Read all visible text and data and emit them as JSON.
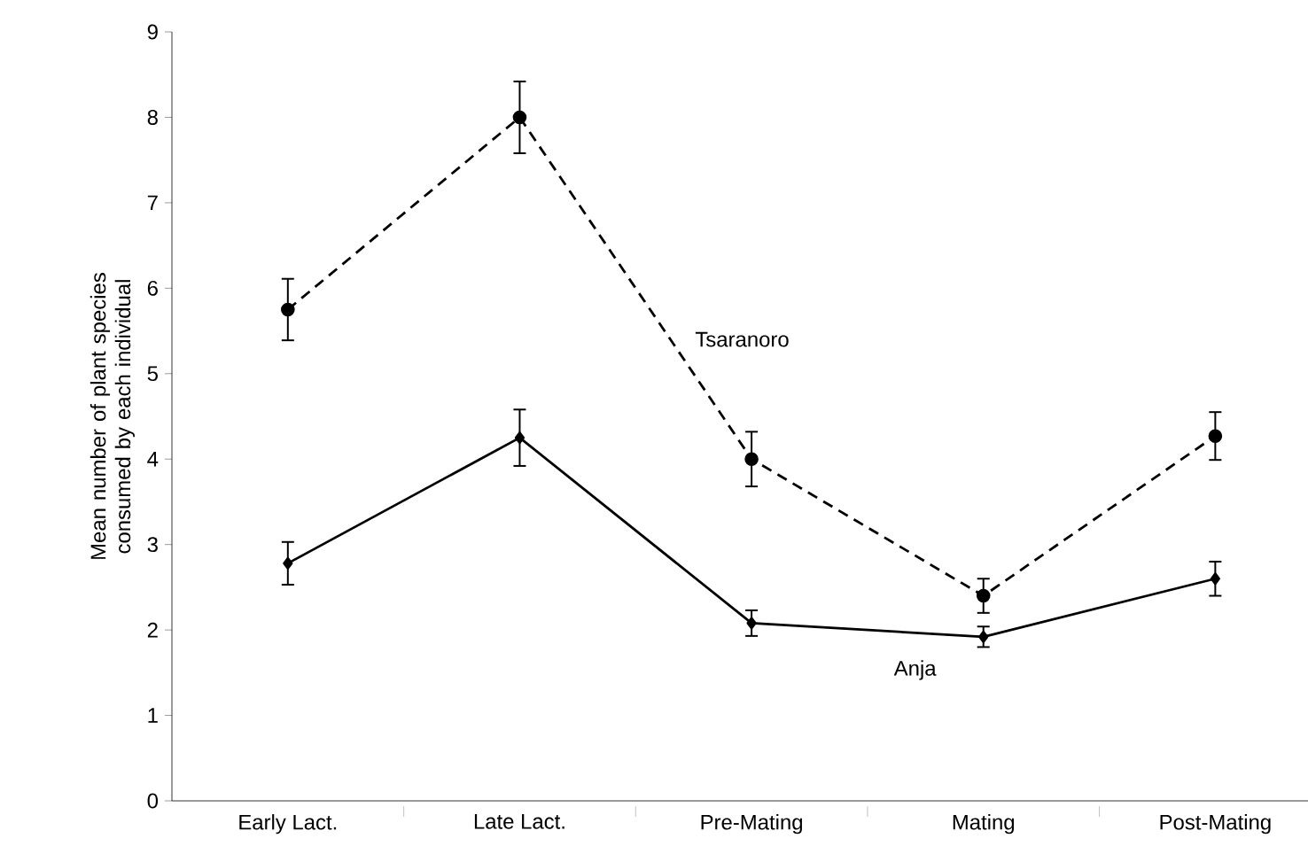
{
  "chart_data": {
    "type": "line",
    "ylabel": "Mean number of plant species consumed by each individual",
    "categories": [
      "Early Lact.",
      "Late Lact.",
      "Pre-Mating",
      "Mating",
      "Post-Mating"
    ],
    "series": [
      {
        "name": "Tsaranoro",
        "color": "#000000",
        "line_style": "dashed",
        "marker": "circle",
        "values": [
          5.75,
          8.0,
          4.0,
          2.4,
          4.27
        ],
        "errors": [
          0.36,
          0.42,
          0.32,
          0.2,
          0.28
        ]
      },
      {
        "name": "Anja",
        "color": "#000000",
        "line_style": "solid",
        "marker": "diamond",
        "values": [
          2.78,
          4.25,
          2.08,
          1.92,
          2.6
        ],
        "errors": [
          0.25,
          0.33,
          0.15,
          0.12,
          0.2
        ]
      }
    ],
    "ylim": [
      0,
      9
    ],
    "yticks": [
      0,
      1,
      2,
      3,
      4,
      5,
      6,
      7,
      8,
      9
    ],
    "grid": false,
    "legend": false
  }
}
